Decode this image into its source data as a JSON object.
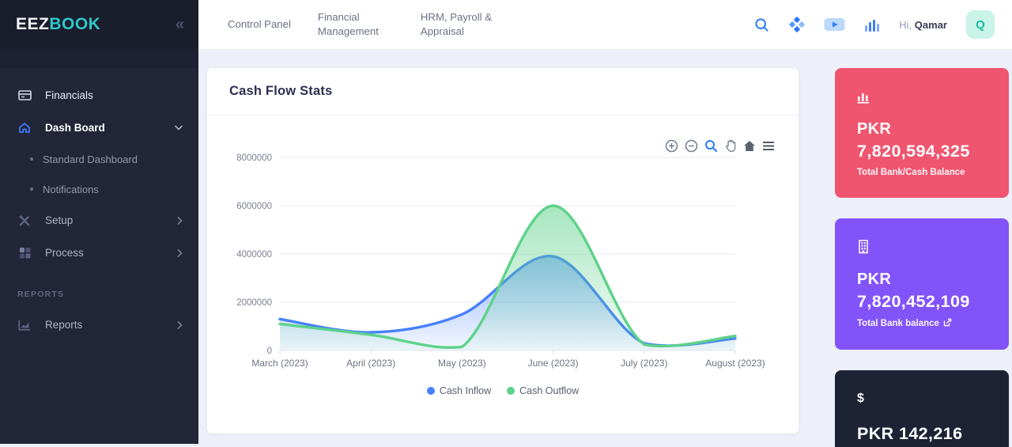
{
  "brand": {
    "primary": "EEZ",
    "secondary": "BOOK",
    "collapse_glyph": "«"
  },
  "sidebar": {
    "items": {
      "financials": "Financials",
      "dashboard": "Dash Board",
      "standard_dashboard": "Standard Dashboard",
      "notifications": "Notifications",
      "setup": "Setup",
      "process": "Process",
      "reports": "Reports"
    },
    "section": "REPORTS"
  },
  "header": {
    "nav": {
      "control_panel": "Control Panel",
      "financial_management": "Financial Management",
      "hrm": "HRM, Payroll & Appraisal"
    },
    "greeting": "Hi,",
    "user": "Qamar",
    "avatar_letter": "Q"
  },
  "chart_card": {
    "title": "Cash Flow Stats",
    "toolbar_icons": [
      "zoom-in",
      "zoom-out",
      "zoom-selection",
      "pan",
      "reset-home",
      "menu"
    ]
  },
  "chart_data": {
    "type": "area",
    "title": "Cash Flow Stats",
    "x": [
      "March (2023)",
      "April (2023)",
      "May (2023)",
      "June (2023)",
      "July (2023)",
      "August (2023)"
    ],
    "series": [
      {
        "name": "Cash Inflow",
        "color": "#4680ff",
        "values": [
          1300000,
          750000,
          1500000,
          3900000,
          300000,
          500000
        ]
      },
      {
        "name": "Cash Outflow",
        "color": "#5ed28a",
        "values": [
          1100000,
          650000,
          150000,
          6000000,
          250000,
          600000
        ]
      }
    ],
    "ylim": [
      0,
      8000000
    ],
    "yticks": [
      0,
      2000000,
      4000000,
      6000000,
      8000000
    ],
    "grid": true,
    "legend_position": "bottom"
  },
  "stat_cards": {
    "bank_cash": {
      "currency": "PKR",
      "amount": "7,820,594,325",
      "label": "Total Bank/Cash Balance"
    },
    "bank": {
      "currency": "PKR",
      "amount": "7,820,452,109",
      "label": "Total Bank balance"
    },
    "third": {
      "icon_glyph": "$",
      "amount": "PKR 142,216"
    }
  },
  "colors": {
    "card_red": "#f05570",
    "card_purple": "#8353fa",
    "card_dark": "#1d2235",
    "inflow": "#4680ff",
    "outflow": "#5ed28a",
    "brand_teal": "#2fc7c9"
  }
}
